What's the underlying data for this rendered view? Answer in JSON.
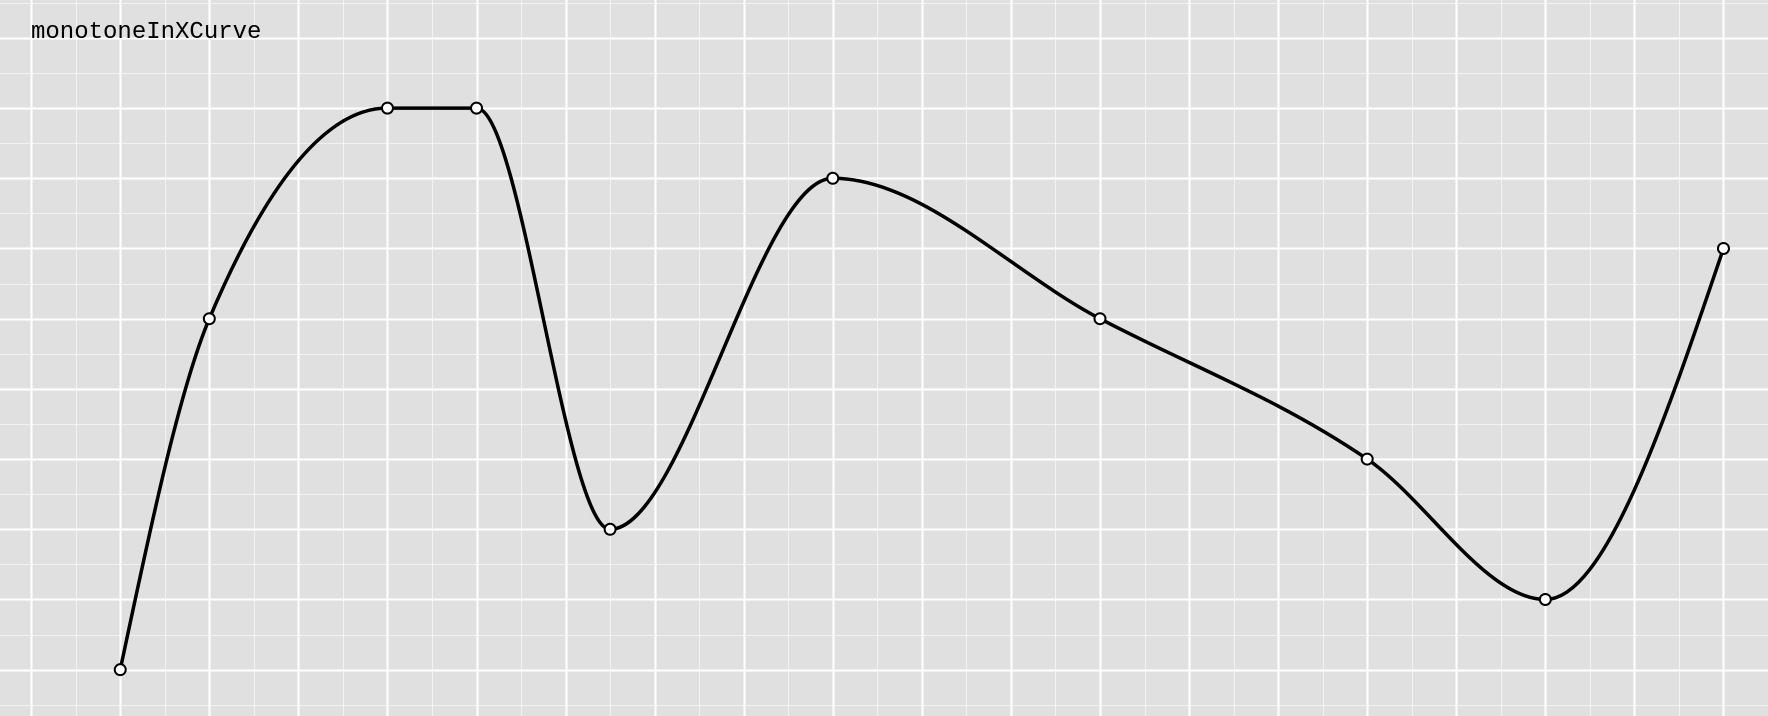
{
  "chart_data": {
    "type": "line",
    "title": "monotoneInXCurve",
    "x": [
      1,
      2,
      4,
      5,
      6.5,
      9,
      12,
      15,
      17,
      19
    ],
    "y": [
      1,
      6,
      9,
      9,
      3,
      8,
      6,
      4,
      2,
      7
    ],
    "xlim": [
      -0.35,
      19.5
    ],
    "ylim": [
      0.34,
      10.54
    ],
    "grid": true,
    "colors": {
      "background": "#e0e0e0",
      "grid": "#ffffff",
      "line": "#000000",
      "point_fill": "#ffffff"
    }
  }
}
